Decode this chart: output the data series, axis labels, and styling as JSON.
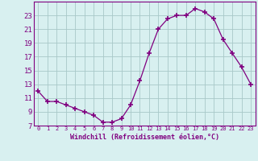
{
  "hours": [
    0,
    1,
    2,
    3,
    4,
    5,
    6,
    7,
    8,
    9,
    10,
    11,
    12,
    13,
    14,
    15,
    16,
    17,
    18,
    19,
    20,
    21,
    22,
    23
  ],
  "values": [
    12.0,
    10.5,
    10.5,
    10.0,
    9.5,
    9.0,
    8.5,
    7.5,
    7.5,
    8.0,
    10.0,
    13.5,
    17.5,
    21.0,
    22.5,
    23.0,
    23.0,
    24.0,
    23.5,
    22.5,
    19.5,
    17.5,
    15.5,
    13.0
  ],
  "line_color": "#800080",
  "marker": "+",
  "marker_size": 4,
  "marker_lw": 1.2,
  "bg_color": "#d8f0f0",
  "grid_color": "#a8c8c8",
  "xlabel": "Windchill (Refroidissement éolien,°C)",
  "xlim": [
    -0.5,
    23.5
  ],
  "ylim": [
    7,
    25
  ],
  "yticks": [
    7,
    9,
    11,
    13,
    15,
    17,
    19,
    21,
    23
  ],
  "xtick_labels": [
    "0",
    "1",
    "2",
    "3",
    "4",
    "5",
    "6",
    "7",
    "8",
    "9",
    "10",
    "11",
    "12",
    "13",
    "14",
    "15",
    "16",
    "17",
    "18",
    "19",
    "20",
    "21",
    "22",
    "23"
  ],
  "axis_color": "#800080",
  "tick_color": "#800080",
  "xlabel_fontsize": 6.0,
  "ytick_fontsize": 6.5,
  "xtick_fontsize": 5.0
}
